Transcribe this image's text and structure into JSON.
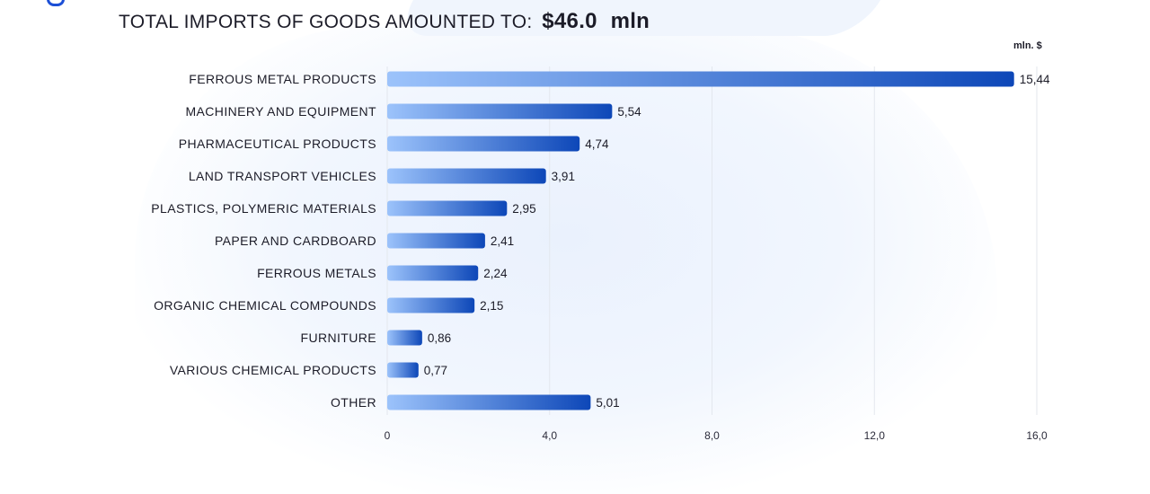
{
  "header": {
    "title_label": "TOTAL IMPORTS OF GOODS AMOUNTED TO:",
    "title_value": "$46.0",
    "title_unit": "mln"
  },
  "chart_data": {
    "type": "bar",
    "orientation": "horizontal",
    "unit_label": "mln. $",
    "categories": [
      "FERROUS METAL PRODUCTS",
      "MACHINERY AND EQUIPMENT",
      "PHARMACEUTICAL PRODUCTS",
      "LAND TRANSPORT VEHICLES",
      "PLASTICS, POLYMERIC MATERIALS",
      "PAPER AND CARDBOARD",
      "FERROUS METALS",
      "ORGANIC CHEMICAL COMPOUNDS",
      "FURNITURE",
      "VARIOUS CHEMICAL PRODUCTS",
      "OTHER"
    ],
    "values": [
      15.44,
      5.54,
      4.74,
      3.91,
      2.95,
      2.41,
      2.24,
      2.15,
      0.86,
      0.77,
      5.01
    ],
    "value_labels": [
      "15,44",
      "5,54",
      "4,74",
      "3,91",
      "2,95",
      "2,41",
      "2,24",
      "2,15",
      "0,86",
      "0,77",
      "5,01"
    ],
    "xlim": [
      0,
      16
    ],
    "xticks": [
      0,
      4,
      8,
      12,
      16
    ],
    "xtick_labels": [
      "0",
      "4,0",
      "8,0",
      "12,0",
      "16,0"
    ],
    "grid": "vertical",
    "colors": {
      "bar_start": "#9cc3fb",
      "bar_end": "#0d47b8"
    }
  }
}
